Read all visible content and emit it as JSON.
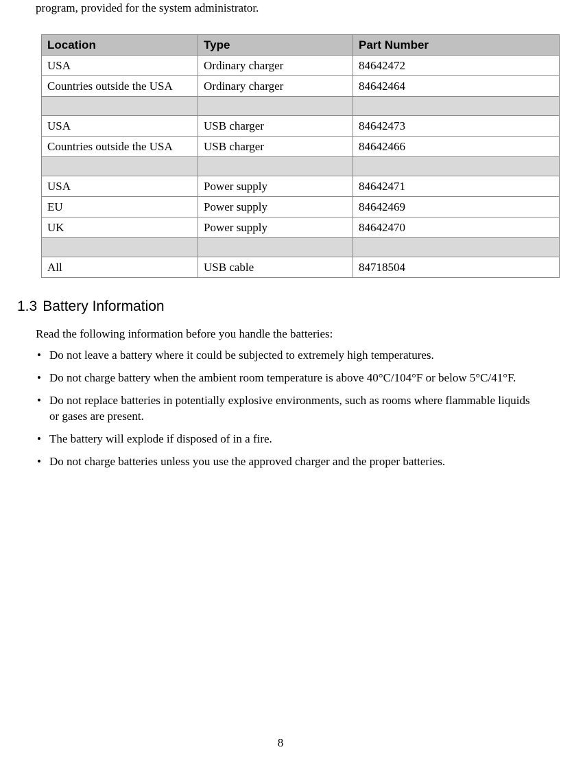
{
  "intro_text": "program, provided for the system administrator.",
  "table": {
    "headers": [
      "Location",
      "Type",
      "Part Number"
    ],
    "rows": [
      {
        "cells": [
          "USA",
          "Ordinary charger",
          "84642472"
        ],
        "separator": false
      },
      {
        "cells": [
          "Countries outside the USA",
          "Ordinary charger",
          "84642464"
        ],
        "separator": false
      },
      {
        "cells": [
          "",
          "",
          ""
        ],
        "separator": true
      },
      {
        "cells": [
          "USA",
          "USB charger",
          "84642473"
        ],
        "separator": false
      },
      {
        "cells": [
          "Countries outside the USA",
          "USB charger",
          "84642466"
        ],
        "separator": false
      },
      {
        "cells": [
          "",
          "",
          ""
        ],
        "separator": true
      },
      {
        "cells": [
          "USA",
          "Power supply",
          "84642471"
        ],
        "separator": false
      },
      {
        "cells": [
          "EU",
          "Power supply",
          "84642469"
        ],
        "separator": false
      },
      {
        "cells": [
          "UK",
          "Power supply",
          "84642470"
        ],
        "separator": false
      },
      {
        "cells": [
          "",
          "",
          ""
        ],
        "separator": true
      },
      {
        "cells": [
          "All",
          "USB cable",
          "84718504"
        ],
        "separator": false
      }
    ]
  },
  "section": {
    "number": "1.3",
    "title": "Battery Information",
    "intro": "Read the following information before you handle the batteries:",
    "bullets": [
      "Do not leave a battery where it could be subjected to extremely high temperatures.",
      "Do not charge battery when the ambient room temperature is above 40°C/104°F or below 5°C/41°F.",
      "Do not replace batteries in potentially explosive environments, such as rooms where flammable liquids or gases are present.",
      "The battery will explode if disposed of in a fire.",
      "Do not charge batteries unless you use the approved charger and the proper batteries."
    ]
  },
  "page_number": "8"
}
